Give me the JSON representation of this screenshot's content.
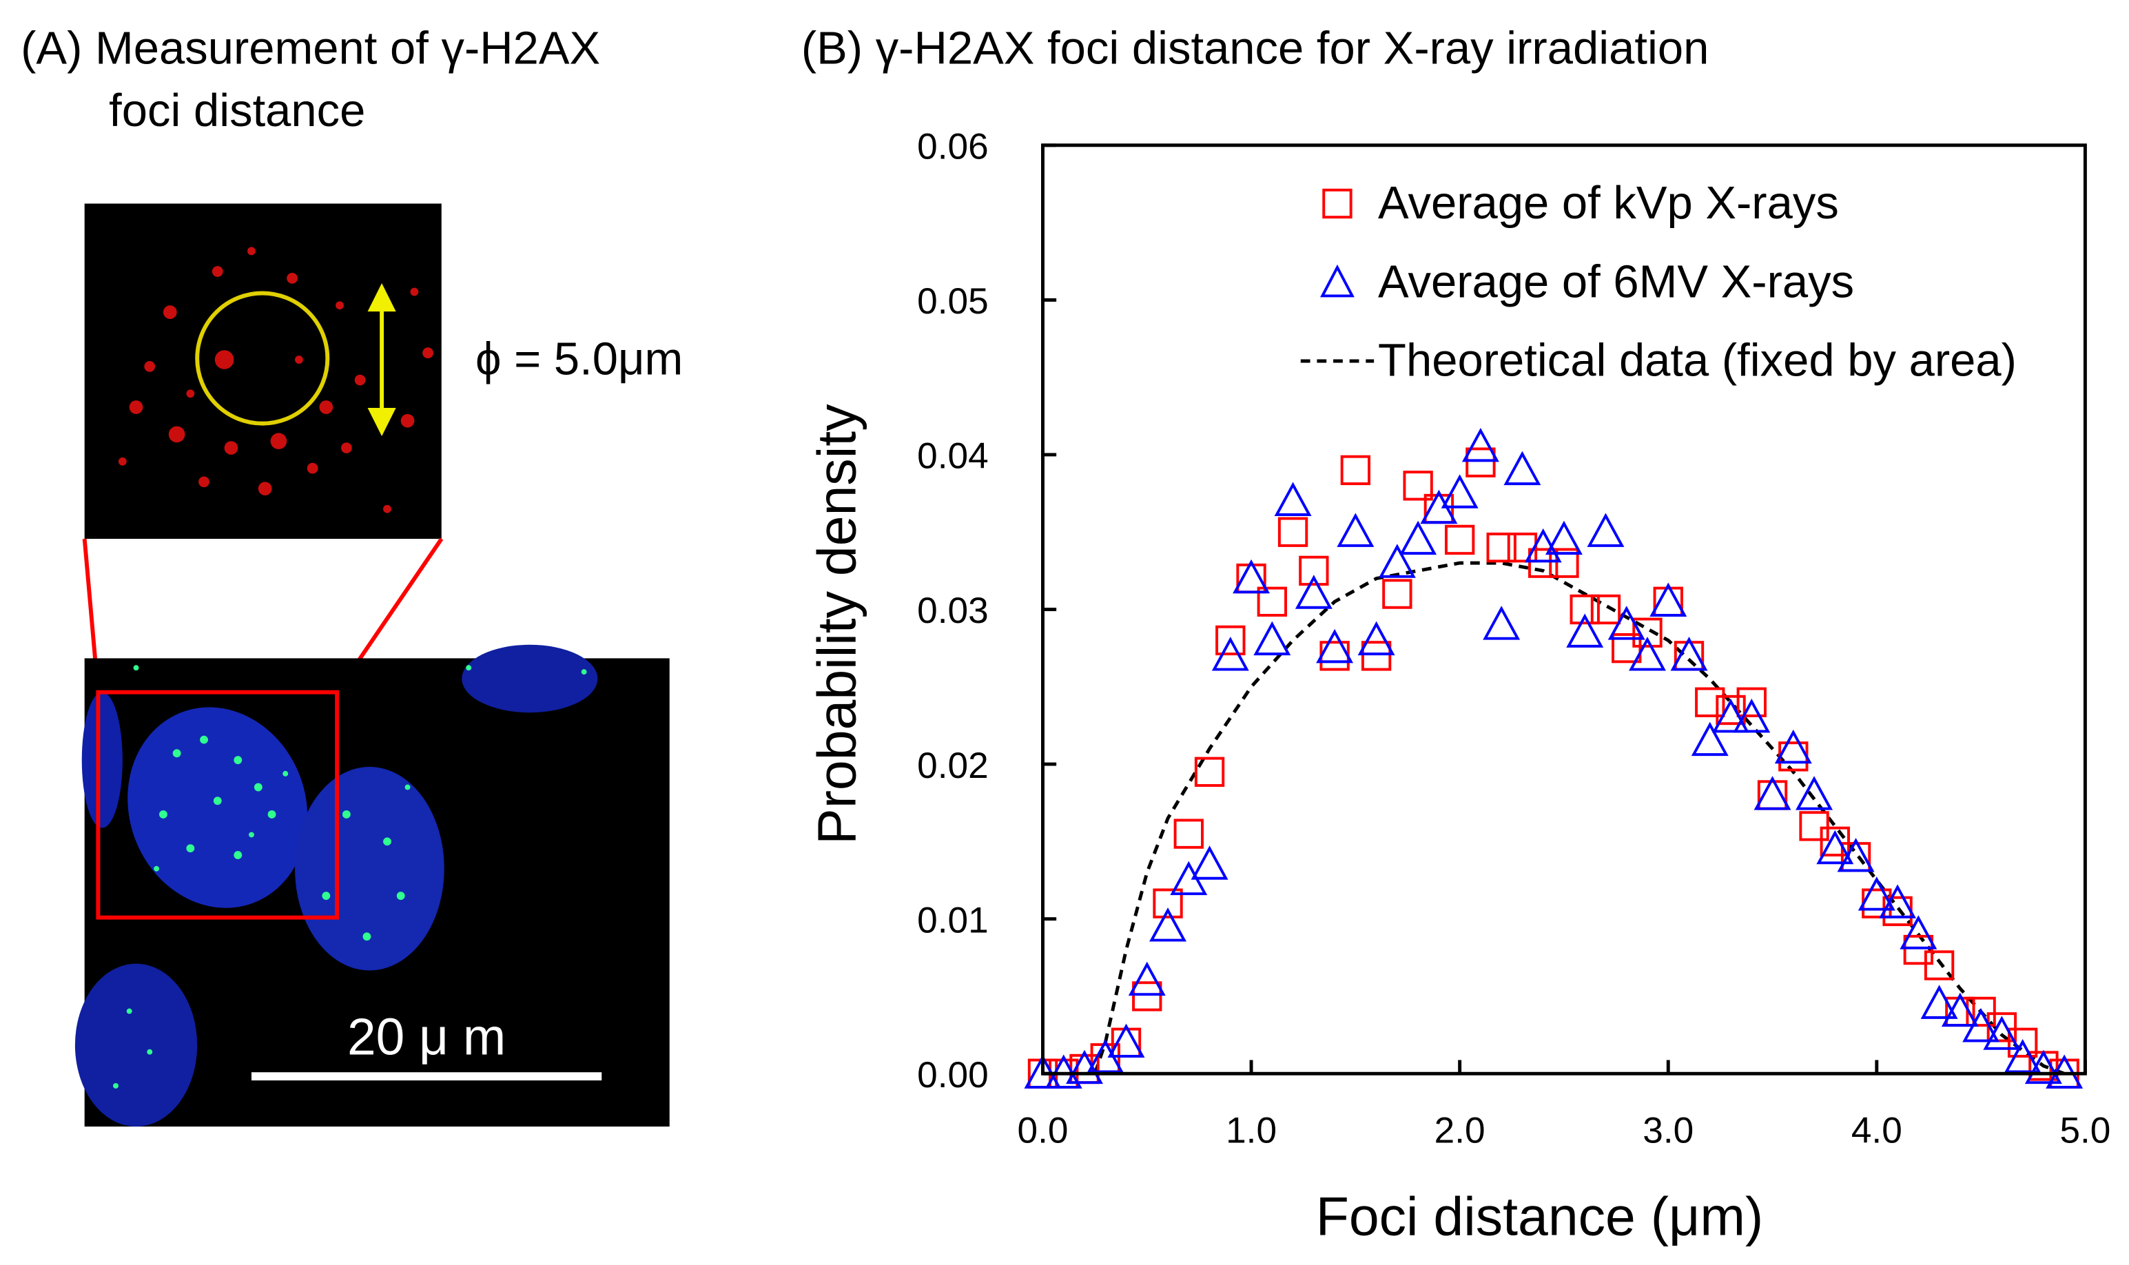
{
  "panel_a": {
    "title_line1": "(A) Measurement of γ-H2AX",
    "title_line2": "foci distance",
    "diameter_label": "ϕ = 5.0μm",
    "scale_bar_label": "20 μ m"
  },
  "chart_data": {
    "type": "scatter",
    "title": "(B) γ-H2AX foci distance for X-ray irradiation",
    "xlabel": "Foci distance (μm)",
    "ylabel": "Probability density",
    "xlim": [
      0,
      5
    ],
    "ylim": [
      0,
      0.06
    ],
    "xticks": [
      "0.0",
      "1.0",
      "2.0",
      "3.0",
      "4.0",
      "5.0"
    ],
    "yticks": [
      "0.00",
      "0.01",
      "0.02",
      "0.03",
      "0.04",
      "0.05",
      "0.06"
    ],
    "legend_position": "top-right",
    "colors": {
      "kvp": "#ff0000",
      "mv": "#0000ff",
      "theory": "#000000"
    },
    "series": [
      {
        "name": "Average of kVp X-rays",
        "marker": "square",
        "x": [
          0.0,
          0.1,
          0.2,
          0.3,
          0.4,
          0.5,
          0.6,
          0.7,
          0.8,
          0.9,
          1.0,
          1.1,
          1.2,
          1.3,
          1.4,
          1.5,
          1.6,
          1.7,
          1.8,
          1.9,
          2.0,
          2.1,
          2.2,
          2.3,
          2.4,
          2.5,
          2.6,
          2.7,
          2.8,
          2.9,
          3.0,
          3.1,
          3.2,
          3.3,
          3.4,
          3.5,
          3.6,
          3.7,
          3.8,
          3.9,
          4.0,
          4.1,
          4.2,
          4.3,
          4.4,
          4.5,
          4.6,
          4.7,
          4.8,
          4.9
        ],
        "y": [
          0.0,
          0.0,
          0.0003,
          0.001,
          0.002,
          0.005,
          0.011,
          0.0155,
          0.0195,
          0.028,
          0.032,
          0.0305,
          0.035,
          0.0325,
          0.027,
          0.039,
          0.027,
          0.031,
          0.038,
          0.0365,
          0.0345,
          0.0395,
          0.034,
          0.034,
          0.033,
          0.033,
          0.03,
          0.03,
          0.0275,
          0.0285,
          0.0305,
          0.027,
          0.024,
          0.0235,
          0.024,
          0.018,
          0.0205,
          0.016,
          0.015,
          0.014,
          0.011,
          0.0105,
          0.008,
          0.007,
          0.004,
          0.004,
          0.003,
          0.002,
          0.0005,
          0.0
        ]
      },
      {
        "name": "Average of 6MV X-rays",
        "marker": "triangle",
        "x": [
          0.0,
          0.1,
          0.2,
          0.3,
          0.4,
          0.5,
          0.6,
          0.7,
          0.8,
          0.9,
          1.0,
          1.1,
          1.2,
          1.3,
          1.4,
          1.5,
          1.6,
          1.7,
          1.8,
          1.9,
          2.0,
          2.1,
          2.2,
          2.3,
          2.4,
          2.5,
          2.6,
          2.7,
          2.8,
          2.9,
          3.0,
          3.1,
          3.2,
          3.3,
          3.4,
          3.5,
          3.6,
          3.7,
          3.8,
          3.9,
          4.0,
          4.1,
          4.2,
          4.3,
          4.4,
          4.5,
          4.6,
          4.7,
          4.8,
          4.9
        ],
        "y": [
          0.0,
          0.0,
          0.0003,
          0.001,
          0.002,
          0.006,
          0.0095,
          0.0125,
          0.0135,
          0.027,
          0.032,
          0.028,
          0.037,
          0.031,
          0.0275,
          0.035,
          0.028,
          0.033,
          0.0345,
          0.0365,
          0.0375,
          0.0405,
          0.029,
          0.039,
          0.034,
          0.0345,
          0.0285,
          0.035,
          0.029,
          0.027,
          0.0305,
          0.027,
          0.0215,
          0.023,
          0.023,
          0.018,
          0.021,
          0.018,
          0.0145,
          0.014,
          0.0115,
          0.011,
          0.009,
          0.0045,
          0.004,
          0.003,
          0.0025,
          0.001,
          0.0003,
          0.0
        ]
      },
      {
        "name": "Theoretical data (fixed by area)",
        "marker": "dashed-line",
        "x": [
          0.25,
          0.3,
          0.4,
          0.5,
          0.6,
          0.8,
          1.0,
          1.2,
          1.4,
          1.6,
          1.8,
          2.0,
          2.2,
          2.4,
          2.6,
          2.8,
          3.0,
          3.2,
          3.4,
          3.6,
          3.8,
          4.0,
          4.2,
          4.4,
          4.6,
          4.8,
          4.9
        ],
        "y": [
          0.0,
          0.002,
          0.008,
          0.013,
          0.0165,
          0.021,
          0.025,
          0.028,
          0.0305,
          0.032,
          0.0325,
          0.033,
          0.033,
          0.0325,
          0.031,
          0.0295,
          0.028,
          0.0255,
          0.0225,
          0.0195,
          0.016,
          0.0125,
          0.009,
          0.0055,
          0.0025,
          0.0005,
          0.0
        ]
      }
    ]
  }
}
